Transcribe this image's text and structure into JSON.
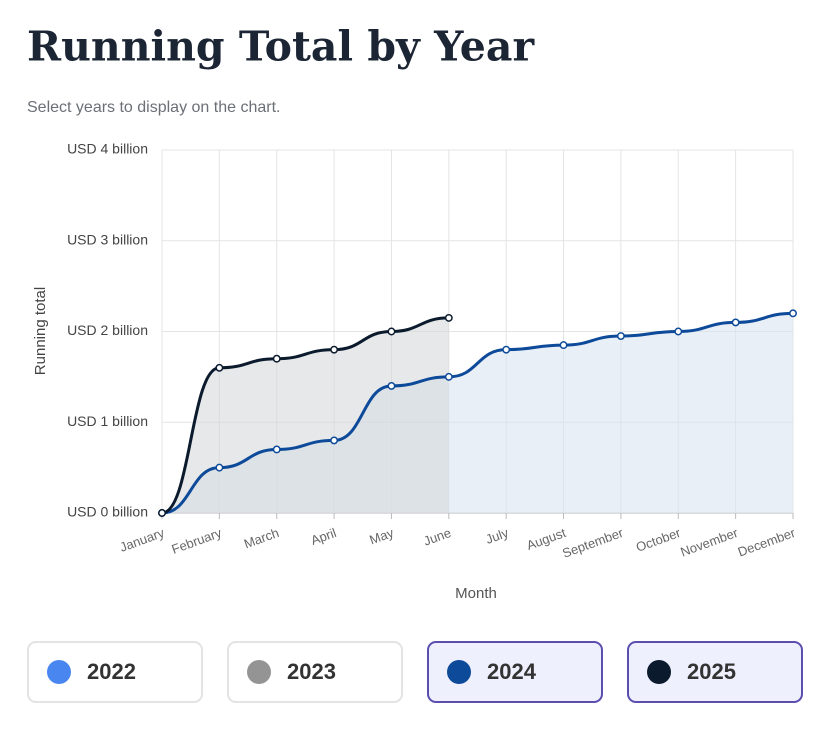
{
  "chart_data": {
    "type": "line",
    "title": "Running Total by Year",
    "subtitle": "Select years to display on the chart.",
    "x_label": "Month",
    "y_label": "Running total",
    "categories": [
      "January",
      "February",
      "March",
      "April",
      "May",
      "June",
      "July",
      "August",
      "September",
      "October",
      "November",
      "December"
    ],
    "ylim": [
      0,
      4
    ],
    "yticks": [
      {
        "value": 0,
        "label": "USD 0 billion"
      },
      {
        "value": 1,
        "label": "USD 1 billion"
      },
      {
        "value": 2,
        "label": "USD 2 billion"
      },
      {
        "value": 3,
        "label": "USD 3 billion"
      },
      {
        "value": 4,
        "label": "USD 4 billion"
      }
    ],
    "grid": true,
    "series": [
      {
        "name": "2022",
        "color": "#4a86f0",
        "selected": false
      },
      {
        "name": "2023",
        "color": "#949494",
        "selected": false
      },
      {
        "name": "2024",
        "color": "#0d4a99",
        "selected": true,
        "fill": "#dbe4f2",
        "values": [
          0,
          0.5,
          0.7,
          0.8,
          1.4,
          1.5,
          1.8,
          1.85,
          1.95,
          2.0,
          2.1,
          2.2
        ]
      },
      {
        "name": "2025",
        "color": "#0b1b2d",
        "selected": true,
        "fill": "#d6d8db",
        "values": [
          0,
          1.6,
          1.7,
          1.8,
          2.0,
          2.15,
          null,
          null,
          null,
          null,
          null,
          null
        ]
      }
    ]
  }
}
